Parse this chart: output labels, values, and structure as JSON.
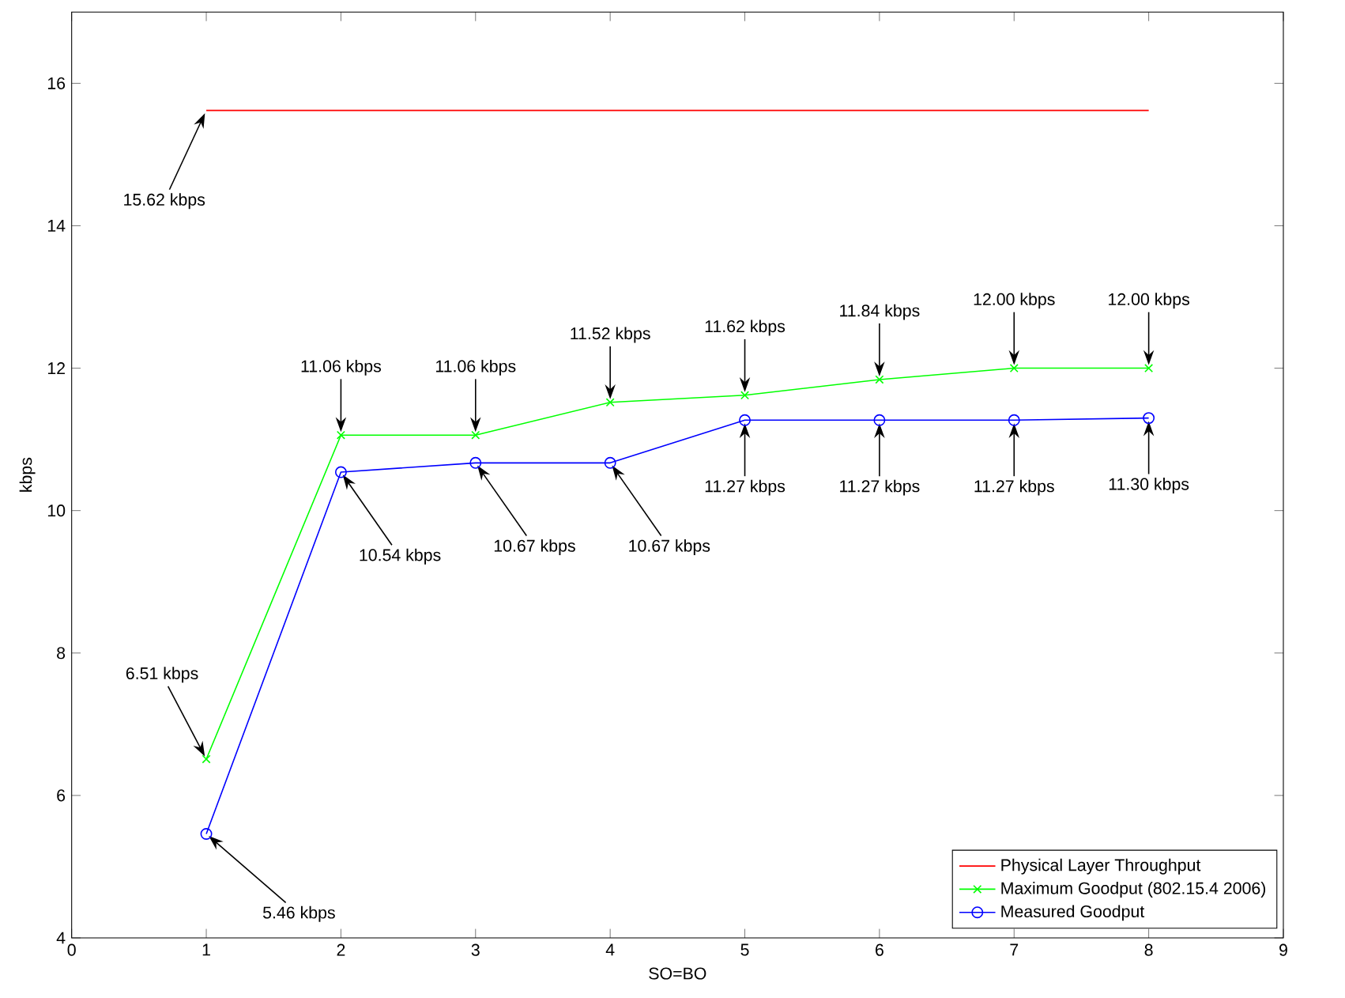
{
  "chart_data": {
    "type": "line",
    "xlabel": "SO=BO",
    "ylabel": "kbps",
    "x": [
      1,
      2,
      3,
      4,
      5,
      6,
      7,
      8
    ],
    "series": [
      {
        "name": "Physical Layer Throughput",
        "color": "#ff0000",
        "marker": "none",
        "values": [
          15.62,
          15.62,
          15.62,
          15.62,
          15.62,
          15.62,
          15.62,
          15.62
        ]
      },
      {
        "name": "Maximum Goodput (802.15.4 2006)",
        "color": "#00ff00",
        "marker": "cross",
        "values": [
          6.51,
          11.06,
          11.06,
          11.52,
          11.62,
          11.84,
          12.0,
          12.0
        ]
      },
      {
        "name": "Measured Goodput",
        "color": "#0000ff",
        "marker": "circle",
        "values": [
          5.46,
          10.54,
          10.67,
          10.67,
          11.27,
          11.27,
          11.27,
          11.3
        ]
      }
    ],
    "xlim": [
      0,
      9
    ],
    "xticks": [
      0,
      1,
      2,
      3,
      4,
      5,
      6,
      7,
      8,
      9
    ],
    "ylim": [
      4,
      17
    ],
    "yticks": [
      4,
      6,
      8,
      10,
      12,
      14,
      16
    ],
    "grid": false,
    "legend": "bottom right",
    "line_style": "solid",
    "annotations": [
      {
        "text": "15.62 kbps",
        "x": 1,
        "y": 15.62
      },
      {
        "text": "6.51 kbps",
        "x": 1,
        "y": 6.51
      },
      {
        "text": "11.06 kbps",
        "x": 2,
        "y": 11.06
      },
      {
        "text": "11.06 kbps",
        "x": 3,
        "y": 11.06
      },
      {
        "text": "11.52 kbps",
        "x": 4,
        "y": 11.52
      },
      {
        "text": "11.62 kbps",
        "x": 5,
        "y": 11.62
      },
      {
        "text": "11.84 kbps",
        "x": 6,
        "y": 11.84
      },
      {
        "text": "12.00 kbps",
        "x": 7,
        "y": 12.0
      },
      {
        "text": "12.00 kbps",
        "x": 8,
        "y": 12.0
      },
      {
        "text": "5.46 kbps",
        "x": 1,
        "y": 5.46
      },
      {
        "text": "10.54 kbps",
        "x": 2,
        "y": 10.54
      },
      {
        "text": "10.67 kbps",
        "x": 3,
        "y": 10.67
      },
      {
        "text": "10.67 kbps",
        "x": 4,
        "y": 10.67
      },
      {
        "text": "11.27 kbps",
        "x": 5,
        "y": 11.27
      },
      {
        "text": "11.27 kbps",
        "x": 6,
        "y": 11.27
      },
      {
        "text": "11.27 kbps",
        "x": 7,
        "y": 11.27
      },
      {
        "text": "11.30 kbps",
        "x": 8,
        "y": 11.3
      }
    ]
  }
}
